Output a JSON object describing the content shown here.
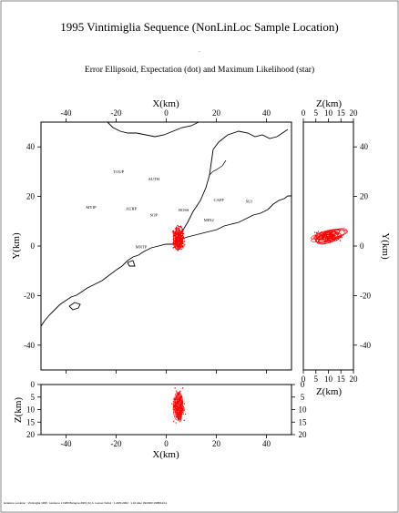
{
  "title": "1995 Vintimiglia Sequence (NonLinLoc Sample Location)",
  "subtitle": "Error Ellipsoid, Expectation (dot) and Maximum Likelihood (star)",
  "footer": "locationo Location : Vintimiglia 1995 : Hodome 1 1983 Bologna 2003 (C) A. Lomax  VolG1 : 1 ARS 2002 : 1.10 Alter 03/2003 1995/11/11",
  "chart_data": [
    {
      "id": "map-xy",
      "type": "scatter",
      "xlabel": "X(km)",
      "ylabel": "Y(km)",
      "ylabel_right": "Y(km)",
      "xlim": [
        -50,
        50
      ],
      "ylim": [
        -50,
        50
      ],
      "xticks": [
        -40,
        -20,
        0,
        20,
        40
      ],
      "yticks": [
        -40,
        -20,
        0,
        20,
        40
      ],
      "xtick_labels": [
        "-40",
        "-20",
        "0",
        "20",
        "40"
      ],
      "ytick_labels": [
        "-40",
        "-20",
        "0",
        "20",
        "40"
      ],
      "stations": [
        {
          "name": "TOUP",
          "x": -19,
          "y": 29.5
        },
        {
          "name": "AUTH",
          "x": -5,
          "y": 26.5
        },
        {
          "name": "MYIP",
          "x": -30,
          "y": 15
        },
        {
          "name": "AURP",
          "x": -14,
          "y": 14.5
        },
        {
          "name": "SOP",
          "x": -5,
          "y": 12
        },
        {
          "name": "ROSS",
          "x": 7,
          "y": 14
        },
        {
          "name": "CAFF",
          "x": 21,
          "y": 18
        },
        {
          "name": "MIN2",
          "x": 17,
          "y": 10
        },
        {
          "name": "SUI",
          "x": 33,
          "y": 17.5
        },
        {
          "name": "MNTP",
          "x": -10,
          "y": -1
        }
      ],
      "events_center": {
        "x": 5,
        "y": 3
      },
      "events_spread": {
        "x": 3,
        "y": 6
      },
      "color": "#ff0000"
    },
    {
      "id": "section-zy",
      "type": "scatter",
      "xlabel": "Z(km)",
      "ylabel": "Y(km)",
      "xlim": [
        0,
        20
      ],
      "ylim": [
        -50,
        50
      ],
      "xticks": [
        0,
        5,
        10,
        15,
        20
      ],
      "xtick_labels": [
        "0",
        "5",
        "10",
        "15",
        "20"
      ],
      "yticks": [
        -40,
        -20,
        0,
        20,
        40
      ],
      "ytick_labels": [
        "-40",
        "-20",
        "0",
        "20",
        "40"
      ],
      "events_center": {
        "z": 10,
        "y": 4
      },
      "events_spread": {
        "z": 7,
        "y": 3
      },
      "color": "#ff0000"
    },
    {
      "id": "section-xz",
      "type": "scatter",
      "xlabel": "X(km)",
      "ylabel": "Z(km)",
      "xlim": [
        -50,
        50
      ],
      "ylim": [
        20,
        0
      ],
      "xticks": [
        -40,
        -20,
        0,
        20,
        40
      ],
      "xtick_labels": [
        "-40",
        "-20",
        "0",
        "20",
        "40"
      ],
      "zticks": [
        0,
        5,
        10,
        15,
        20
      ],
      "ztick_labels": [
        "0",
        "5",
        "10",
        "15",
        "20"
      ],
      "events_center": {
        "x": 5,
        "z": 9
      },
      "events_spread": {
        "x": 3,
        "z": 8
      },
      "color": "#ff0000"
    }
  ]
}
